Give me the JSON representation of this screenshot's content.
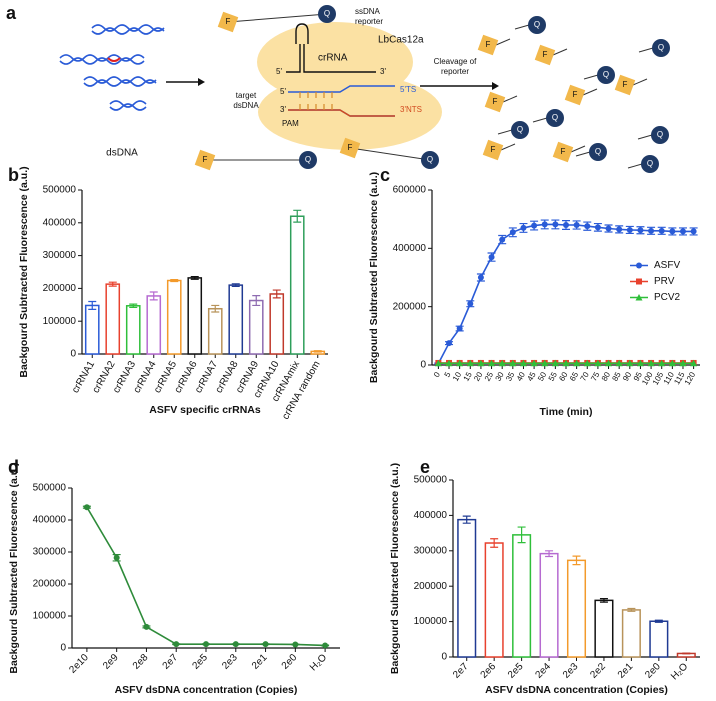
{
  "diagram": {
    "panel": "a",
    "dsdna": "dsDNA",
    "ssdna_reporter": [
      "ssDNA",
      "reporter"
    ],
    "enzyme": "LbCas12a",
    "crrna": "crRNA",
    "target": [
      "target",
      "dsDNA"
    ],
    "five_prime": "5'",
    "three_prime": "3'",
    "ts": "5'TS",
    "nts": "3'NTS",
    "pam": "PAM",
    "cleavage": [
      "Cleavage of",
      "reporter"
    ],
    "fluorophore": "F",
    "quencher": "Q"
  },
  "chart_data": [
    {
      "type": "bar",
      "panel": "b",
      "categories": [
        "crRNA1",
        "crRNA2",
        "crRNA3",
        "crRNA4",
        "crRNA5",
        "crRNA6",
        "crRNA7",
        "crRNA8",
        "crRNA9",
        "crRNA10",
        "crRNAmix",
        "crRNA random"
      ],
      "values": [
        148000,
        213000,
        147000,
        177000,
        224000,
        232000,
        138000,
        210000,
        163000,
        183000,
        420000,
        8000
      ],
      "errors": [
        12000,
        6000,
        5000,
        12000,
        3000,
        4000,
        10000,
        4000,
        15000,
        12000,
        18000,
        2000
      ],
      "colors": [
        "#2a5bd7",
        "#e8412d",
        "#2fbf3a",
        "#b66ad1",
        "#f39a2b",
        "#111111",
        "#b8935a",
        "#1f3a93",
        "#8e6bb1",
        "#c0392b",
        "#2e9e5a",
        "#f39a2b"
      ],
      "ylabel": "Backgourd Subtracted Fluorescence (a.u.)",
      "xlabel": "ASFV specific crRNAs",
      "ylim": [
        0,
        500000
      ],
      "yticks": [
        0,
        100000,
        200000,
        300000,
        400000,
        500000
      ]
    },
    {
      "type": "line",
      "panel": "c",
      "x": [
        0,
        5,
        10,
        15,
        20,
        25,
        30,
        35,
        40,
        45,
        50,
        55,
        60,
        65,
        70,
        75,
        80,
        85,
        90,
        95,
        100,
        105,
        110,
        115,
        120
      ],
      "series": [
        {
          "name": "ASFV",
          "color": "#2a5bd7",
          "marker": "circle",
          "values": [
            5000,
            75000,
            125000,
            210000,
            300000,
            370000,
            430000,
            455000,
            470000,
            478000,
            482000,
            482000,
            480000,
            480000,
            476000,
            472000,
            468000,
            465000,
            463000,
            462000,
            460000,
            460000,
            458000,
            458000,
            458000
          ],
          "errors": [
            2000,
            5000,
            8000,
            10000,
            12000,
            14000,
            14000,
            15000,
            15000,
            15000,
            15000,
            15000,
            15000,
            14000,
            14000,
            13000,
            12000,
            12000,
            12000,
            12000,
            12000,
            12000,
            12000,
            12000,
            12000
          ]
        },
        {
          "name": "PRV",
          "color": "#e8412d",
          "marker": "square",
          "values": [
            7000,
            7000,
            7000,
            7000,
            7000,
            7000,
            7000,
            7000,
            7000,
            7000,
            7000,
            7000,
            7000,
            7000,
            7000,
            7000,
            7000,
            7000,
            7000,
            7000,
            7000,
            7000,
            7000,
            7000,
            7000
          ]
        },
        {
          "name": "PCV2",
          "color": "#2fbf3a",
          "marker": "triangle",
          "values": [
            6000,
            6000,
            6000,
            6000,
            6000,
            6000,
            6000,
            6000,
            6000,
            6000,
            6000,
            6000,
            6000,
            6000,
            6000,
            6000,
            6000,
            6000,
            6000,
            6000,
            6000,
            6000,
            6000,
            6000,
            6000
          ]
        }
      ],
      "legend": "right",
      "ylabel": "Backgourd Subtracted Fluorescence (a.u.)",
      "xlabel": "Time (min)",
      "xlim": [
        -3,
        123
      ],
      "xticks": [
        0,
        5,
        10,
        15,
        20,
        25,
        30,
        35,
        40,
        45,
        50,
        55,
        60,
        65,
        70,
        75,
        80,
        85,
        90,
        95,
        100,
        105,
        110,
        115,
        120
      ],
      "ylim": [
        0,
        600000
      ],
      "yticks": [
        0,
        200000,
        400000,
        600000
      ]
    },
    {
      "type": "line",
      "panel": "d",
      "categories": [
        "2e10",
        "2e9",
        "2e8",
        "2e7",
        "2e5",
        "2e3",
        "2e1",
        "2e0",
        "H₂O"
      ],
      "values": [
        440000,
        282000,
        66000,
        12000,
        12000,
        12000,
        12000,
        11000,
        8000
      ],
      "errors": [
        3000,
        10000,
        3000,
        1000,
        1000,
        1000,
        1000,
        1000,
        1000
      ],
      "color": "#2e8b3a",
      "marker": "circle",
      "ylabel": "Backgourd Subtracted Fluorescence (a.u.)",
      "xlabel": "ASFV dsDNA concentration (Copies)",
      "ylim": [
        0,
        500000
      ],
      "yticks": [
        0,
        100000,
        200000,
        300000,
        400000,
        500000
      ]
    },
    {
      "type": "bar",
      "panel": "e",
      "categories": [
        "2e7",
        "2e6",
        "2e5",
        "2e4",
        "2e3",
        "2e2",
        "2e1",
        "2e0",
        "H₂O"
      ],
      "values": [
        388000,
        322000,
        345000,
        292000,
        273000,
        160000,
        133000,
        101000,
        10000
      ],
      "errors": [
        10000,
        12000,
        22000,
        8000,
        12000,
        5000,
        4000,
        3000,
        1000
      ],
      "colors": [
        "#1f3a93",
        "#e8412d",
        "#2fbf3a",
        "#b66ad1",
        "#f39a2b",
        "#111111",
        "#b8935a",
        "#1f3a93",
        "#c0392b"
      ],
      "ylabel": "Backgourd Subtracted Fluorescence (a.u.)",
      "xlabel": "ASFV dsDNA concentration (Copies)",
      "ylim": [
        0,
        500000
      ],
      "yticks": [
        0,
        100000,
        200000,
        300000,
        400000,
        500000
      ]
    }
  ]
}
